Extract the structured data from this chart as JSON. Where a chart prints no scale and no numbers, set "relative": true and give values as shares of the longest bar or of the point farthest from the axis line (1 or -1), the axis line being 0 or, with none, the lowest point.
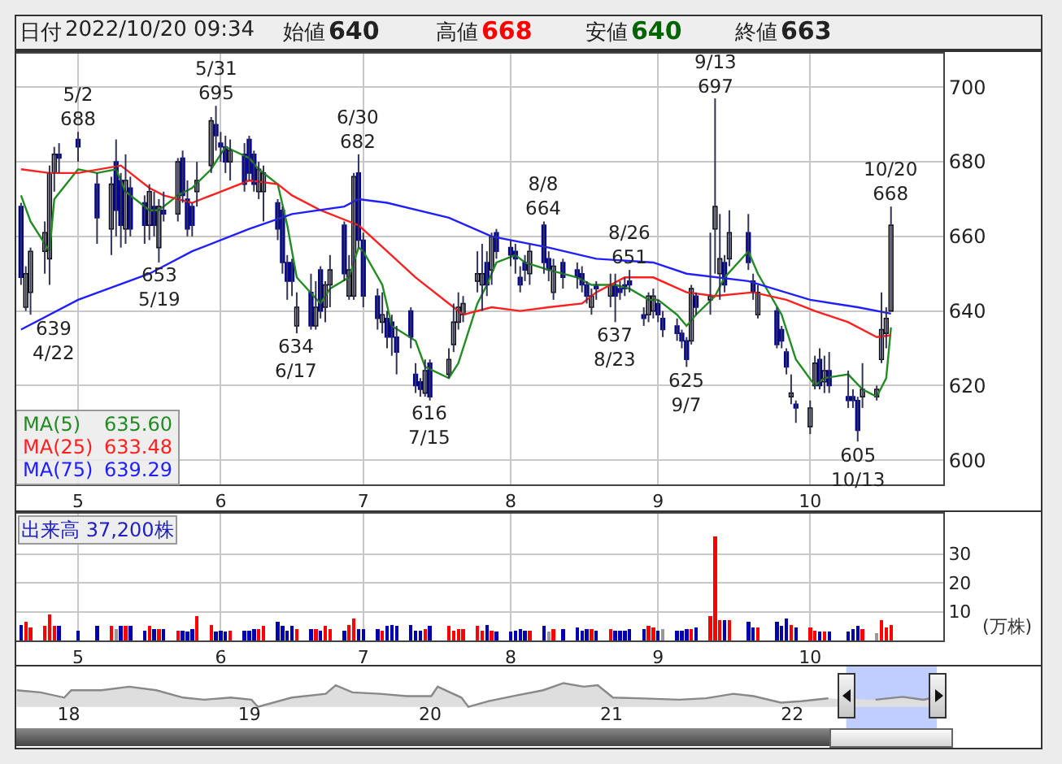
{
  "chart_data": [
    {
      "type": "other",
      "annotations": [
        "日付",
        "2022/10/20 09:34",
        "始値",
        "640",
        "高値",
        "668",
        "安値",
        "640",
        "終値",
        "663"
      ]
    },
    {
      "type": "candlestick",
      "grid": true,
      "legend": "bottom left",
      "colors": [
        "#000099",
        "#ffffff",
        "#ffffff",
        "#ffffff",
        "#ffffff",
        "#ffffff",
        "#000099",
        "#000099",
        "#000099",
        "#ffffff",
        "#000099",
        "#000099",
        "#ffffff",
        "#000099",
        "#000099",
        "#ffffff",
        "#000099",
        "#ffffff",
        "#000099",
        "#ffffff",
        "#000099",
        "#000099",
        "#000099",
        "#ffffff",
        "#ffffff",
        "#000099",
        "#000099",
        "#000099",
        "#ffffff",
        "#000099",
        "#000099",
        "#000099",
        "#ffffff",
        "#ffffff",
        "#000099",
        "#000099",
        "#000099",
        "#000099",
        "#ffffff",
        "#000099",
        "#ffffff",
        "#000099",
        "#ffffff",
        "#ffffff",
        "#000099",
        "#ffffff",
        "#ffffff",
        "#000099",
        "#000099",
        "#000099",
        "#ffffff",
        "#000099",
        "#000099",
        "#000099",
        "#000099",
        "#000099",
        "#000099",
        "#ffffff",
        "#000099",
        "#ffffff",
        "#ffffff",
        "#ffffff",
        "#ffffff",
        "#ffffff",
        "#ffffff",
        "#000099",
        "#ffffff",
        "#000099",
        "#000099",
        "#000099",
        "#000099",
        "#000099",
        "#ffffff",
        "#000099",
        "#000099",
        "#ffffff",
        "#000099",
        "#000099",
        "#000099",
        "#000099",
        "#ffffff",
        "#000099",
        "#ffffff",
        "#000099",
        "#000099",
        "#000099",
        "#000099",
        "#000099",
        "#ffffff",
        "#ffffff",
        "#000099",
        "#000099",
        "#000099",
        "#000099",
        "#000099",
        "#ffffff",
        "#000099",
        "#ffffff",
        "#ffffff",
        "#ffffff",
        "#000099",
        "#ffffff",
        "#000099",
        "#000099",
        "#ffffff",
        "#000099",
        "#000099",
        "#000099",
        "#ffffff",
        "#000099",
        "#ffffff",
        "#ffffff",
        "#000099",
        "#ffffff",
        "#000099",
        "#000099",
        "#000099",
        "#000099",
        "#ffffff",
        "#ffffff",
        "#ffffff",
        "#ffffff",
        "#ffffff"
      ],
      "x": [
        "2022-04-20",
        "2022-04-21",
        "2022-04-22",
        "2022-04-25",
        "2022-04-26",
        "2022-04-27",
        "2022-04-28",
        "2022-05-02",
        "2022-05-06",
        "2022-05-09",
        "2022-05-10",
        "2022-05-11",
        "2022-05-12",
        "2022-05-13",
        "2022-05-16",
        "2022-05-17",
        "2022-05-18",
        "2022-05-19",
        "2022-05-20",
        "2022-05-23",
        "2022-05-24",
        "2022-05-25",
        "2022-05-26",
        "2022-05-27",
        "2022-05-30",
        "2022-05-31",
        "2022-06-01",
        "2022-06-02",
        "2022-06-03",
        "2022-06-06",
        "2022-06-07",
        "2022-06-08",
        "2022-06-09",
        "2022-06-10",
        "2022-06-13",
        "2022-06-14",
        "2022-06-15",
        "2022-06-16",
        "2022-06-17",
        "2022-06-20",
        "2022-06-21",
        "2022-06-22",
        "2022-06-23",
        "2022-06-24",
        "2022-06-27",
        "2022-06-28",
        "2022-06-29",
        "2022-06-30",
        "2022-07-01",
        "2022-07-04",
        "2022-07-05",
        "2022-07-06",
        "2022-07-07",
        "2022-07-08",
        "2022-07-11",
        "2022-07-12",
        "2022-07-13",
        "2022-07-14",
        "2022-07-15",
        "2022-07-19",
        "2022-07-20",
        "2022-07-21",
        "2022-07-22",
        "2022-07-25",
        "2022-07-26",
        "2022-07-27",
        "2022-07-28",
        "2022-07-29",
        "2022-08-01",
        "2022-08-02",
        "2022-08-03",
        "2022-08-04",
        "2022-08-05",
        "2022-08-08",
        "2022-08-09",
        "2022-08-10",
        "2022-08-12",
        "2022-08-15",
        "2022-08-16",
        "2022-08-17",
        "2022-08-18",
        "2022-08-19",
        "2022-08-22",
        "2022-08-23",
        "2022-08-24",
        "2022-08-25",
        "2022-08-26",
        "2022-08-29",
        "2022-08-30",
        "2022-08-31",
        "2022-09-01",
        "2022-09-02",
        "2022-09-05",
        "2022-09-06",
        "2022-09-07",
        "2022-09-08",
        "2022-09-09",
        "2022-09-12",
        "2022-09-13",
        "2022-09-14",
        "2022-09-15",
        "2022-09-16",
        "2022-09-20",
        "2022-09-21",
        "2022-09-22",
        "2022-09-26",
        "2022-09-27",
        "2022-09-28",
        "2022-09-29",
        "2022-09-30",
        "2022-10-03",
        "2022-10-04",
        "2022-10-05",
        "2022-10-06",
        "2022-10-07",
        "2022-10-11",
        "2022-10-12",
        "2022-10-13",
        "2022-10-14",
        "2022-10-17",
        "2022-10-18",
        "2022-10-19",
        "2022-10-20"
      ],
      "ohlc": [
        [
          668,
          669,
          647,
          649
        ],
        [
          641,
          652,
          640,
          650
        ],
        [
          645,
          657,
          639,
          656
        ],
        [
          656,
          664,
          650,
          661
        ],
        [
          654,
          679,
          647,
          677
        ],
        [
          677,
          684,
          672,
          682
        ],
        [
          682,
          685,
          677,
          681
        ],
        [
          686,
          688,
          680,
          684
        ],
        [
          674,
          677,
          658,
          665
        ],
        [
          662,
          676,
          655,
          674
        ],
        [
          680,
          686,
          660,
          667
        ],
        [
          675,
          677,
          657,
          663
        ],
        [
          662,
          682,
          658,
          675
        ],
        [
          673,
          676,
          660,
          662
        ],
        [
          669,
          671,
          658,
          663
        ],
        [
          663,
          674,
          659,
          672
        ],
        [
          668,
          672,
          660,
          663
        ],
        [
          657,
          670,
          653,
          668
        ],
        [
          667,
          672,
          664,
          666
        ],
        [
          666,
          681,
          664,
          680
        ],
        [
          681,
          683,
          669,
          671
        ],
        [
          670,
          675,
          660,
          662
        ],
        [
          668,
          669,
          660,
          663
        ],
        [
          672,
          680,
          668,
          675
        ],
        [
          679,
          692,
          677,
          691
        ],
        [
          690,
          695,
          683,
          687
        ],
        [
          685,
          688,
          680,
          684
        ],
        [
          684,
          687,
          677,
          680
        ],
        [
          680,
          686,
          675,
          683
        ],
        [
          682,
          685,
          672,
          674
        ],
        [
          686,
          687,
          675,
          677
        ],
        [
          682,
          683,
          672,
          674
        ],
        [
          672,
          680,
          670,
          678
        ],
        [
          672,
          679,
          664,
          677
        ],
        [
          669,
          670,
          659,
          662
        ],
        [
          667,
          668,
          650,
          653
        ],
        [
          653,
          655,
          643,
          648
        ],
        [
          653,
          654,
          644,
          648
        ],
        [
          636,
          645,
          634,
          641
        ],
        [
          645,
          650,
          635,
          636
        ],
        [
          636,
          648,
          635,
          641
        ],
        [
          651,
          652,
          638,
          640
        ],
        [
          641,
          648,
          637,
          647
        ],
        [
          647,
          655,
          641,
          651
        ],
        [
          663,
          664,
          648,
          650
        ],
        [
          644,
          655,
          643,
          651
        ],
        [
          644,
          677,
          643,
          676
        ],
        [
          677,
          682,
          657,
          659
        ],
        [
          659,
          661,
          641,
          644
        ],
        [
          644,
          646,
          635,
          638
        ],
        [
          637,
          645,
          634,
          639
        ],
        [
          638,
          640,
          630,
          633
        ],
        [
          637,
          639,
          628,
          633
        ],
        [
          633,
          636,
          623,
          629
        ],
        [
          640,
          641,
          630,
          633
        ],
        [
          623,
          626,
          618,
          620
        ],
        [
          621,
          622,
          617,
          619
        ],
        [
          618,
          627,
          617,
          624
        ],
        [
          626,
          627,
          616,
          617
        ],
        [
          623,
          630,
          622,
          627
        ],
        [
          631,
          642,
          629,
          637
        ],
        [
          637,
          645,
          635,
          641
        ],
        [
          639,
          644,
          637,
          642
        ],
        [
          648,
          656,
          645,
          650
        ],
        [
          647,
          658,
          640,
          650
        ],
        [
          653,
          656,
          644,
          647
        ],
        [
          651,
          661,
          647,
          660
        ],
        [
          661,
          662,
          654,
          656
        ],
        [
          657,
          659,
          652,
          655
        ],
        [
          656,
          658,
          650,
          654
        ],
        [
          649,
          652,
          645,
          647
        ],
        [
          653,
          655,
          648,
          651
        ],
        [
          650,
          658,
          647,
          656
        ],
        [
          663,
          664,
          650,
          653
        ],
        [
          654,
          656,
          648,
          651
        ],
        [
          645,
          654,
          643,
          652
        ],
        [
          653,
          654,
          646,
          649
        ],
        [
          651,
          653,
          646,
          649
        ],
        [
          650,
          652,
          645,
          647
        ],
        [
          647,
          648,
          642,
          644
        ],
        [
          641,
          646,
          639,
          644
        ],
        [
          647,
          648,
          643,
          646
        ],
        [
          644,
          650,
          641,
          647
        ],
        [
          647,
          650,
          637,
          644
        ],
        [
          646,
          648,
          643,
          645
        ],
        [
          647,
          649,
          644,
          646
        ],
        [
          648,
          651,
          645,
          647
        ],
        [
          639,
          641,
          636,
          638
        ],
        [
          639,
          645,
          637,
          644
        ],
        [
          640,
          646,
          638,
          644
        ],
        [
          642,
          643,
          637,
          639
        ],
        [
          638,
          640,
          633,
          635
        ],
        [
          636,
          638,
          632,
          634
        ],
        [
          634,
          635,
          630,
          632
        ],
        [
          632,
          633,
          625,
          627
        ],
        [
          632,
          647,
          631,
          646
        ],
        [
          644,
          645,
          639,
          641
        ],
        [
          643,
          661,
          639,
          644
        ],
        [
          662,
          697,
          650,
          668
        ],
        [
          650,
          666,
          643,
          654
        ],
        [
          653,
          655,
          645,
          647
        ],
        [
          654,
          667,
          652,
          661
        ],
        [
          661,
          666,
          651,
          653
        ],
        [
          648,
          650,
          643,
          645
        ],
        [
          639,
          647,
          638,
          645
        ],
        [
          640,
          641,
          630,
          631
        ],
        [
          635,
          636,
          630,
          632
        ],
        [
          629,
          630,
          623,
          625
        ],
        [
          617,
          623,
          615,
          618
        ],
        [
          615,
          616,
          610,
          614
        ],
        [
          609,
          616,
          607,
          614
        ],
        [
          620,
          628,
          619,
          626
        ],
        [
          627,
          630,
          619,
          620
        ],
        [
          621,
          628,
          618,
          624
        ],
        [
          624,
          629,
          618,
          620
        ],
        [
          617,
          624,
          614,
          616
        ],
        [
          617,
          619,
          614,
          616
        ],
        [
          616,
          617,
          605,
          608
        ],
        [
          617,
          626,
          614,
          619
        ],
        [
          617,
          620,
          616,
          619
        ],
        [
          627,
          645,
          626,
          635
        ],
        [
          634,
          641,
          630,
          638
        ],
        [
          640,
          668,
          640,
          663
        ]
      ],
      "series": [
        {
          "type": "line",
          "name": "MA(5)",
          "color": "#228b22",
          "x": [
            "2022-04-20",
            "2022-04-22",
            "2022-04-26",
            "2022-04-27",
            "2022-05-02",
            "2022-05-06",
            "2022-05-10",
            "2022-05-12",
            "2022-05-17",
            "2022-05-19",
            "2022-05-23",
            "2022-05-26",
            "2022-05-30",
            "2022-06-02",
            "2022-06-07",
            "2022-06-09",
            "2022-06-13",
            "2022-06-15",
            "2022-06-17",
            "2022-06-22",
            "2022-06-24",
            "2022-06-28",
            "2022-06-30",
            "2022-07-01",
            "2022-07-05",
            "2022-07-07",
            "2022-07-12",
            "2022-07-14",
            "2022-07-19",
            "2022-07-21",
            "2022-07-25",
            "2022-07-27",
            "2022-07-29",
            "2022-08-02",
            "2022-08-04",
            "2022-08-09",
            "2022-08-15",
            "2022-08-18",
            "2022-08-23",
            "2022-08-26",
            "2022-08-30",
            "2022-09-01",
            "2022-09-05",
            "2022-09-07",
            "2022-09-09",
            "2022-09-13",
            "2022-09-15",
            "2022-09-20",
            "2022-09-22",
            "2022-09-27",
            "2022-09-30",
            "2022-10-04",
            "2022-10-06",
            "2022-10-11",
            "2022-10-14",
            "2022-10-17",
            "2022-10-19",
            "2022-10-20"
          ],
          "values": [
            671,
            664,
            656,
            670,
            678,
            677,
            678,
            672,
            667,
            667,
            671,
            673,
            678,
            684,
            681,
            678,
            674,
            663,
            649,
            642,
            646,
            649,
            657,
            656,
            647,
            636,
            632,
            625,
            622,
            626,
            642,
            647,
            653,
            655,
            653,
            651,
            649,
            647,
            647,
            646,
            643,
            643,
            639,
            636,
            639,
            644,
            649,
            656,
            650,
            639,
            627,
            620,
            622,
            623,
            619,
            617,
            622,
            635.6
          ]
        },
        {
          "type": "line",
          "name": "MA(25)",
          "color": "#ff2020",
          "x": [
            "2022-04-20",
            "2022-04-26",
            "2022-05-02",
            "2022-05-11",
            "2022-05-17",
            "2022-05-20",
            "2022-05-26",
            "2022-06-01",
            "2022-06-07",
            "2022-06-13",
            "2022-06-16",
            "2022-06-22",
            "2022-06-28",
            "2022-06-30",
            "2022-07-06",
            "2022-07-12",
            "2022-07-19",
            "2022-07-22",
            "2022-07-28",
            "2022-08-03",
            "2022-08-09",
            "2022-08-16",
            "2022-08-19",
            "2022-08-25",
            "2022-08-31",
            "2022-09-07",
            "2022-09-13",
            "2022-09-21",
            "2022-09-28",
            "2022-10-04",
            "2022-10-11",
            "2022-10-17",
            "2022-10-20"
          ],
          "values": [
            678,
            677,
            677,
            679,
            673,
            671,
            669,
            672,
            675,
            674,
            671,
            667,
            664,
            663,
            656,
            649,
            642,
            639,
            641,
            640,
            641,
            642,
            645,
            649,
            649,
            645,
            644,
            645,
            643,
            640,
            637,
            633,
            633.48
          ]
        },
        {
          "type": "line",
          "name": "MA(75)",
          "color": "#2020ff",
          "x": [
            "2022-04-20",
            "2022-05-02",
            "2022-05-17",
            "2022-05-26",
            "2022-06-07",
            "2022-06-16",
            "2022-06-27",
            "2022-06-30",
            "2022-07-06",
            "2022-07-19",
            "2022-07-28",
            "2022-08-09",
            "2022-08-19",
            "2022-08-31",
            "2022-09-07",
            "2022-09-20",
            "2022-10-03",
            "2022-10-13",
            "2022-10-20"
          ],
          "values": [
            635,
            643,
            650,
            656,
            662,
            666,
            668,
            670,
            669,
            665,
            660,
            657,
            654,
            653,
            650,
            648,
            643,
            641,
            639.29
          ]
        }
      ],
      "annotations": [
        "635.60",
        "633.48",
        "639.29",
        {
          "text": "639\n4/22",
          "x": "2022-04-22",
          "y": 639
        },
        {
          "text": "5/2\n688",
          "x": "2022-05-02",
          "y": 688
        },
        {
          "text": "653\n5/19",
          "x": "2022-05-19",
          "y": 653
        },
        {
          "text": "5/31\n695",
          "x": "2022-05-31",
          "y": 695
        },
        {
          "text": "634\n6/17",
          "x": "2022-06-17",
          "y": 634
        },
        {
          "text": "6/30\n682",
          "x": "2022-06-30",
          "y": 682
        },
        {
          "text": "616\n7/15",
          "x": "2022-07-15",
          "y": 616
        },
        {
          "text": "8/8\n664",
          "x": "2022-08-08",
          "y": 664
        },
        {
          "text": "637\n8/23",
          "x": "2022-08-23",
          "y": 637
        },
        {
          "text": "8/26\n651",
          "x": "2022-08-26",
          "y": 651
        },
        {
          "text": "625\n9/7",
          "x": "2022-09-07",
          "y": 625
        },
        {
          "text": "9/13\n697",
          "x": "2022-09-13",
          "y": 697
        },
        {
          "text": "605\n10/13",
          "x": "2022-10-13",
          "y": 605
        },
        {
          "text": "10/20\n668",
          "x": "2022-10-20",
          "y": 668
        }
      ],
      "ylim": [
        593.5,
        709
      ],
      "yticks": [
        600,
        620,
        640,
        660,
        680,
        700
      ],
      "xlim": [
        "2022-04-19",
        "2022-10-31"
      ],
      "xticks": [
        {
          "value": "2022-05-02",
          "label": "5"
        },
        {
          "value": "2022-06-01",
          "label": "6"
        },
        {
          "value": "2022-07-01",
          "label": "7"
        },
        {
          "value": "2022-08-01",
          "label": "8"
        },
        {
          "value": "2022-09-01",
          "label": "9"
        },
        {
          "value": "2022-10-03",
          "label": "10"
        }
      ]
    },
    {
      "type": "bar",
      "grid": true,
      "ylabel": "(万株)",
      "annotations": [
        "出来高 37,200株"
      ],
      "x": [
        "2022-04-20",
        "2022-04-21",
        "2022-04-22",
        "2022-04-25",
        "2022-04-26",
        "2022-04-27",
        "2022-04-28",
        "2022-05-02",
        "2022-05-06",
        "2022-05-09",
        "2022-05-10",
        "2022-05-11",
        "2022-05-12",
        "2022-05-13",
        "2022-05-16",
        "2022-05-17",
        "2022-05-18",
        "2022-05-19",
        "2022-05-20",
        "2022-05-23",
        "2022-05-24",
        "2022-05-25",
        "2022-05-26",
        "2022-05-27",
        "2022-05-30",
        "2022-05-31",
        "2022-06-01",
        "2022-06-02",
        "2022-06-03",
        "2022-06-06",
        "2022-06-07",
        "2022-06-08",
        "2022-06-09",
        "2022-06-10",
        "2022-06-13",
        "2022-06-14",
        "2022-06-15",
        "2022-06-16",
        "2022-06-17",
        "2022-06-20",
        "2022-06-21",
        "2022-06-22",
        "2022-06-23",
        "2022-06-24",
        "2022-06-27",
        "2022-06-28",
        "2022-06-29",
        "2022-06-30",
        "2022-07-01",
        "2022-07-04",
        "2022-07-05",
        "2022-07-06",
        "2022-07-07",
        "2022-07-08",
        "2022-07-11",
        "2022-07-12",
        "2022-07-13",
        "2022-07-14",
        "2022-07-15",
        "2022-07-19",
        "2022-07-20",
        "2022-07-21",
        "2022-07-22",
        "2022-07-25",
        "2022-07-26",
        "2022-07-27",
        "2022-07-28",
        "2022-07-29",
        "2022-08-01",
        "2022-08-02",
        "2022-08-03",
        "2022-08-04",
        "2022-08-05",
        "2022-08-08",
        "2022-08-09",
        "2022-08-10",
        "2022-08-12",
        "2022-08-15",
        "2022-08-16",
        "2022-08-17",
        "2022-08-18",
        "2022-08-19",
        "2022-08-22",
        "2022-08-23",
        "2022-08-24",
        "2022-08-25",
        "2022-08-26",
        "2022-08-29",
        "2022-08-30",
        "2022-08-31",
        "2022-09-01",
        "2022-09-02",
        "2022-09-05",
        "2022-09-06",
        "2022-09-07",
        "2022-09-08",
        "2022-09-09",
        "2022-09-12",
        "2022-09-13",
        "2022-09-14",
        "2022-09-15",
        "2022-09-16",
        "2022-09-20",
        "2022-09-21",
        "2022-09-22",
        "2022-09-26",
        "2022-09-27",
        "2022-09-28",
        "2022-09-29",
        "2022-09-30",
        "2022-10-03",
        "2022-10-04",
        "2022-10-05",
        "2022-10-06",
        "2022-10-07",
        "2022-10-11",
        "2022-10-12",
        "2022-10-13",
        "2022-10-14",
        "2022-10-17",
        "2022-10-18",
        "2022-10-19",
        "2022-10-20"
      ],
      "values": [
        5.5,
        6.5,
        4.5,
        5,
        9,
        5,
        5,
        3.5,
        5,
        5,
        4,
        5,
        5,
        5,
        3.5,
        5,
        4,
        4,
        4,
        3.5,
        3.5,
        3,
        4,
        8.5,
        5.5,
        3,
        3.5,
        3,
        3.5,
        3.5,
        3.5,
        4,
        4,
        5,
        6.5,
        5,
        3.5,
        5,
        4,
        4,
        4,
        3.5,
        5,
        4,
        3.5,
        5.5,
        7.5,
        4,
        4,
        4,
        3.5,
        5,
        5.5,
        5,
        5.5,
        3.5,
        3.5,
        4,
        5,
        5,
        3.5,
        4,
        4,
        5,
        3.5,
        5.5,
        3.5,
        3,
        3,
        3.5,
        4,
        3.5,
        3.5,
        5,
        3,
        4,
        4,
        4.5,
        3.5,
        4,
        4,
        3.5,
        4,
        3.5,
        3.5,
        3.5,
        4,
        4,
        5,
        4.5,
        3.5,
        4,
        3.5,
        3.5,
        4,
        4,
        4.5,
        8.5,
        36,
        7,
        7,
        7,
        6.5,
        4.5,
        4.5,
        6.5,
        5,
        7.5,
        5.5,
        4.5,
        4.5,
        3.5,
        3,
        3,
        3,
        3,
        4,
        5,
        4,
        2.5,
        7,
        4.5,
        5.5
      ],
      "colors": [
        "#0000b0",
        "#ff0000",
        "#ff0000",
        "#ff0000",
        "#ff0000",
        "#ff0000",
        "#0000b0",
        "#0000b0",
        "#0000b0",
        "#ff0000",
        "#999999",
        "#0000b0",
        "#ff0000",
        "#0000b0",
        "#0000b0",
        "#ff0000",
        "#0000b0",
        "#ff0000",
        "#0000b0",
        "#ff0000",
        "#0000b0",
        "#0000b0",
        "#0000b0",
        "#ff0000",
        "#ff0000",
        "#0000b0",
        "#0000b0",
        "#0000b0",
        "#ff0000",
        "#0000b0",
        "#0000b0",
        "#0000b0",
        "#ff0000",
        "#ff0000",
        "#0000b0",
        "#0000b0",
        "#0000b0",
        "#0000b0",
        "#ff0000",
        "#0000b0",
        "#ff0000",
        "#0000b0",
        "#ff0000",
        "#ff0000",
        "#0000b0",
        "#ff0000",
        "#ff0000",
        "#0000b0",
        "#0000b0",
        "#0000b0",
        "#ff0000",
        "#0000b0",
        "#0000b0",
        "#0000b0",
        "#0000b0",
        "#0000b0",
        "#0000b0",
        "#ff0000",
        "#0000b0",
        "#ff0000",
        "#ff0000",
        "#ff0000",
        "#ff0000",
        "#ff0000",
        "#ff0000",
        "#0000b0",
        "#ff0000",
        "#0000b0",
        "#0000b0",
        "#0000b0",
        "#0000b0",
        "#0000b0",
        "#ff0000",
        "#0000b0",
        "#999999",
        "#ff0000",
        "#0000b0",
        "#0000b0",
        "#0000b0",
        "#0000b0",
        "#ff0000",
        "#0000b0",
        "#ff0000",
        "#0000b0",
        "#0000b0",
        "#0000b0",
        "#0000b0",
        "#0000b0",
        "#ff0000",
        "#ff0000",
        "#0000b0",
        "#999999",
        "#0000b0",
        "#0000b0",
        "#0000b0",
        "#ff0000",
        "#0000b0",
        "#ff0000",
        "#ff0000",
        "#ff0000",
        "#0000b0",
        "#ff0000",
        "#0000b0",
        "#0000b0",
        "#ff0000",
        "#0000b0",
        "#0000b0",
        "#0000b0",
        "#ff0000",
        "#0000b0",
        "#ff0000",
        "#ff0000",
        "#0000b0",
        "#ff0000",
        "#0000b0",
        "#0000b0",
        "#0000b0",
        "#0000b0",
        "#ff0000",
        "#999999",
        "#ff0000",
        "#ff0000",
        "#ff0000"
      ],
      "ylim": [
        0,
        44
      ],
      "yticks": [
        10,
        20,
        30
      ],
      "xlim": [
        "2022-04-19",
        "2022-10-31"
      ],
      "xticks": [
        {
          "value": "2022-05-02",
          "label": "5"
        },
        {
          "value": "2022-06-01",
          "label": "6"
        },
        {
          "value": "2022-07-01",
          "label": "7"
        },
        {
          "value": "2022-08-01",
          "label": "8"
        },
        {
          "value": "2022-09-01",
          "label": "9"
        },
        {
          "value": "2022-10-03",
          "label": "10"
        }
      ]
    },
    {
      "type": "area",
      "relative": true,
      "color": "#888888",
      "x": [
        "2017-09-18",
        "2017-11-05",
        "2017-12-23",
        "2018-01-06",
        "2018-03-08",
        "2018-05-03",
        "2018-06-27",
        "2018-08-20",
        "2018-10-01",
        "2018-11-24",
        "2019-01-05",
        "2019-01-18",
        "2019-03-27",
        "2019-06-04",
        "2019-06-24",
        "2019-07-28",
        "2019-09-21",
        "2019-11-15",
        "2020-01-03",
        "2020-01-16",
        "2020-03-04",
        "2020-03-18",
        "2020-04-28",
        "2020-06-23",
        "2020-08-16",
        "2020-09-26",
        "2020-11-06",
        "2020-12-04",
        "2021-01-04",
        "2021-02-24",
        "2021-05-18",
        "2021-07-11",
        "2021-09-04",
        "2021-10-15",
        "2021-12-09",
        "2022-01-19",
        "2022-03-15",
        "2022-04-24",
        "2022-06-18",
        "2022-08-12",
        "2022-09-23",
        "2022-10-20"
      ],
      "values": [
        0.7,
        0.61,
        0.39,
        0.7,
        0.7,
        0.85,
        0.7,
        0.39,
        0.3,
        0.39,
        0.3,
        0,
        0.39,
        0.55,
        0.91,
        0.61,
        0.55,
        0.45,
        0.45,
        0.85,
        0.39,
        0,
        0.24,
        0.48,
        0.7,
        1,
        0.85,
        0.91,
        0.39,
        0.36,
        0.3,
        0.36,
        0.55,
        0.45,
        0.18,
        0.24,
        0.36,
        null,
        0.3,
        0.42,
        0.3,
        0.42
      ],
      "xlim": [
        "2017-09-17",
        "2023-05-18"
      ],
      "xticks": [
        {
          "value": "2018-01-01",
          "label": "18"
        },
        {
          "value": "2019-01-01",
          "label": "19"
        },
        {
          "value": "2020-01-01",
          "label": "20"
        },
        {
          "value": "2021-01-01",
          "label": "21"
        },
        {
          "value": "2022-01-01",
          "label": "22"
        }
      ],
      "bands": [
        {
          "axis": "x",
          "from": "2022-04-20",
          "to": "2022-10-20",
          "color": "#b4c4ff"
        }
      ]
    }
  ]
}
